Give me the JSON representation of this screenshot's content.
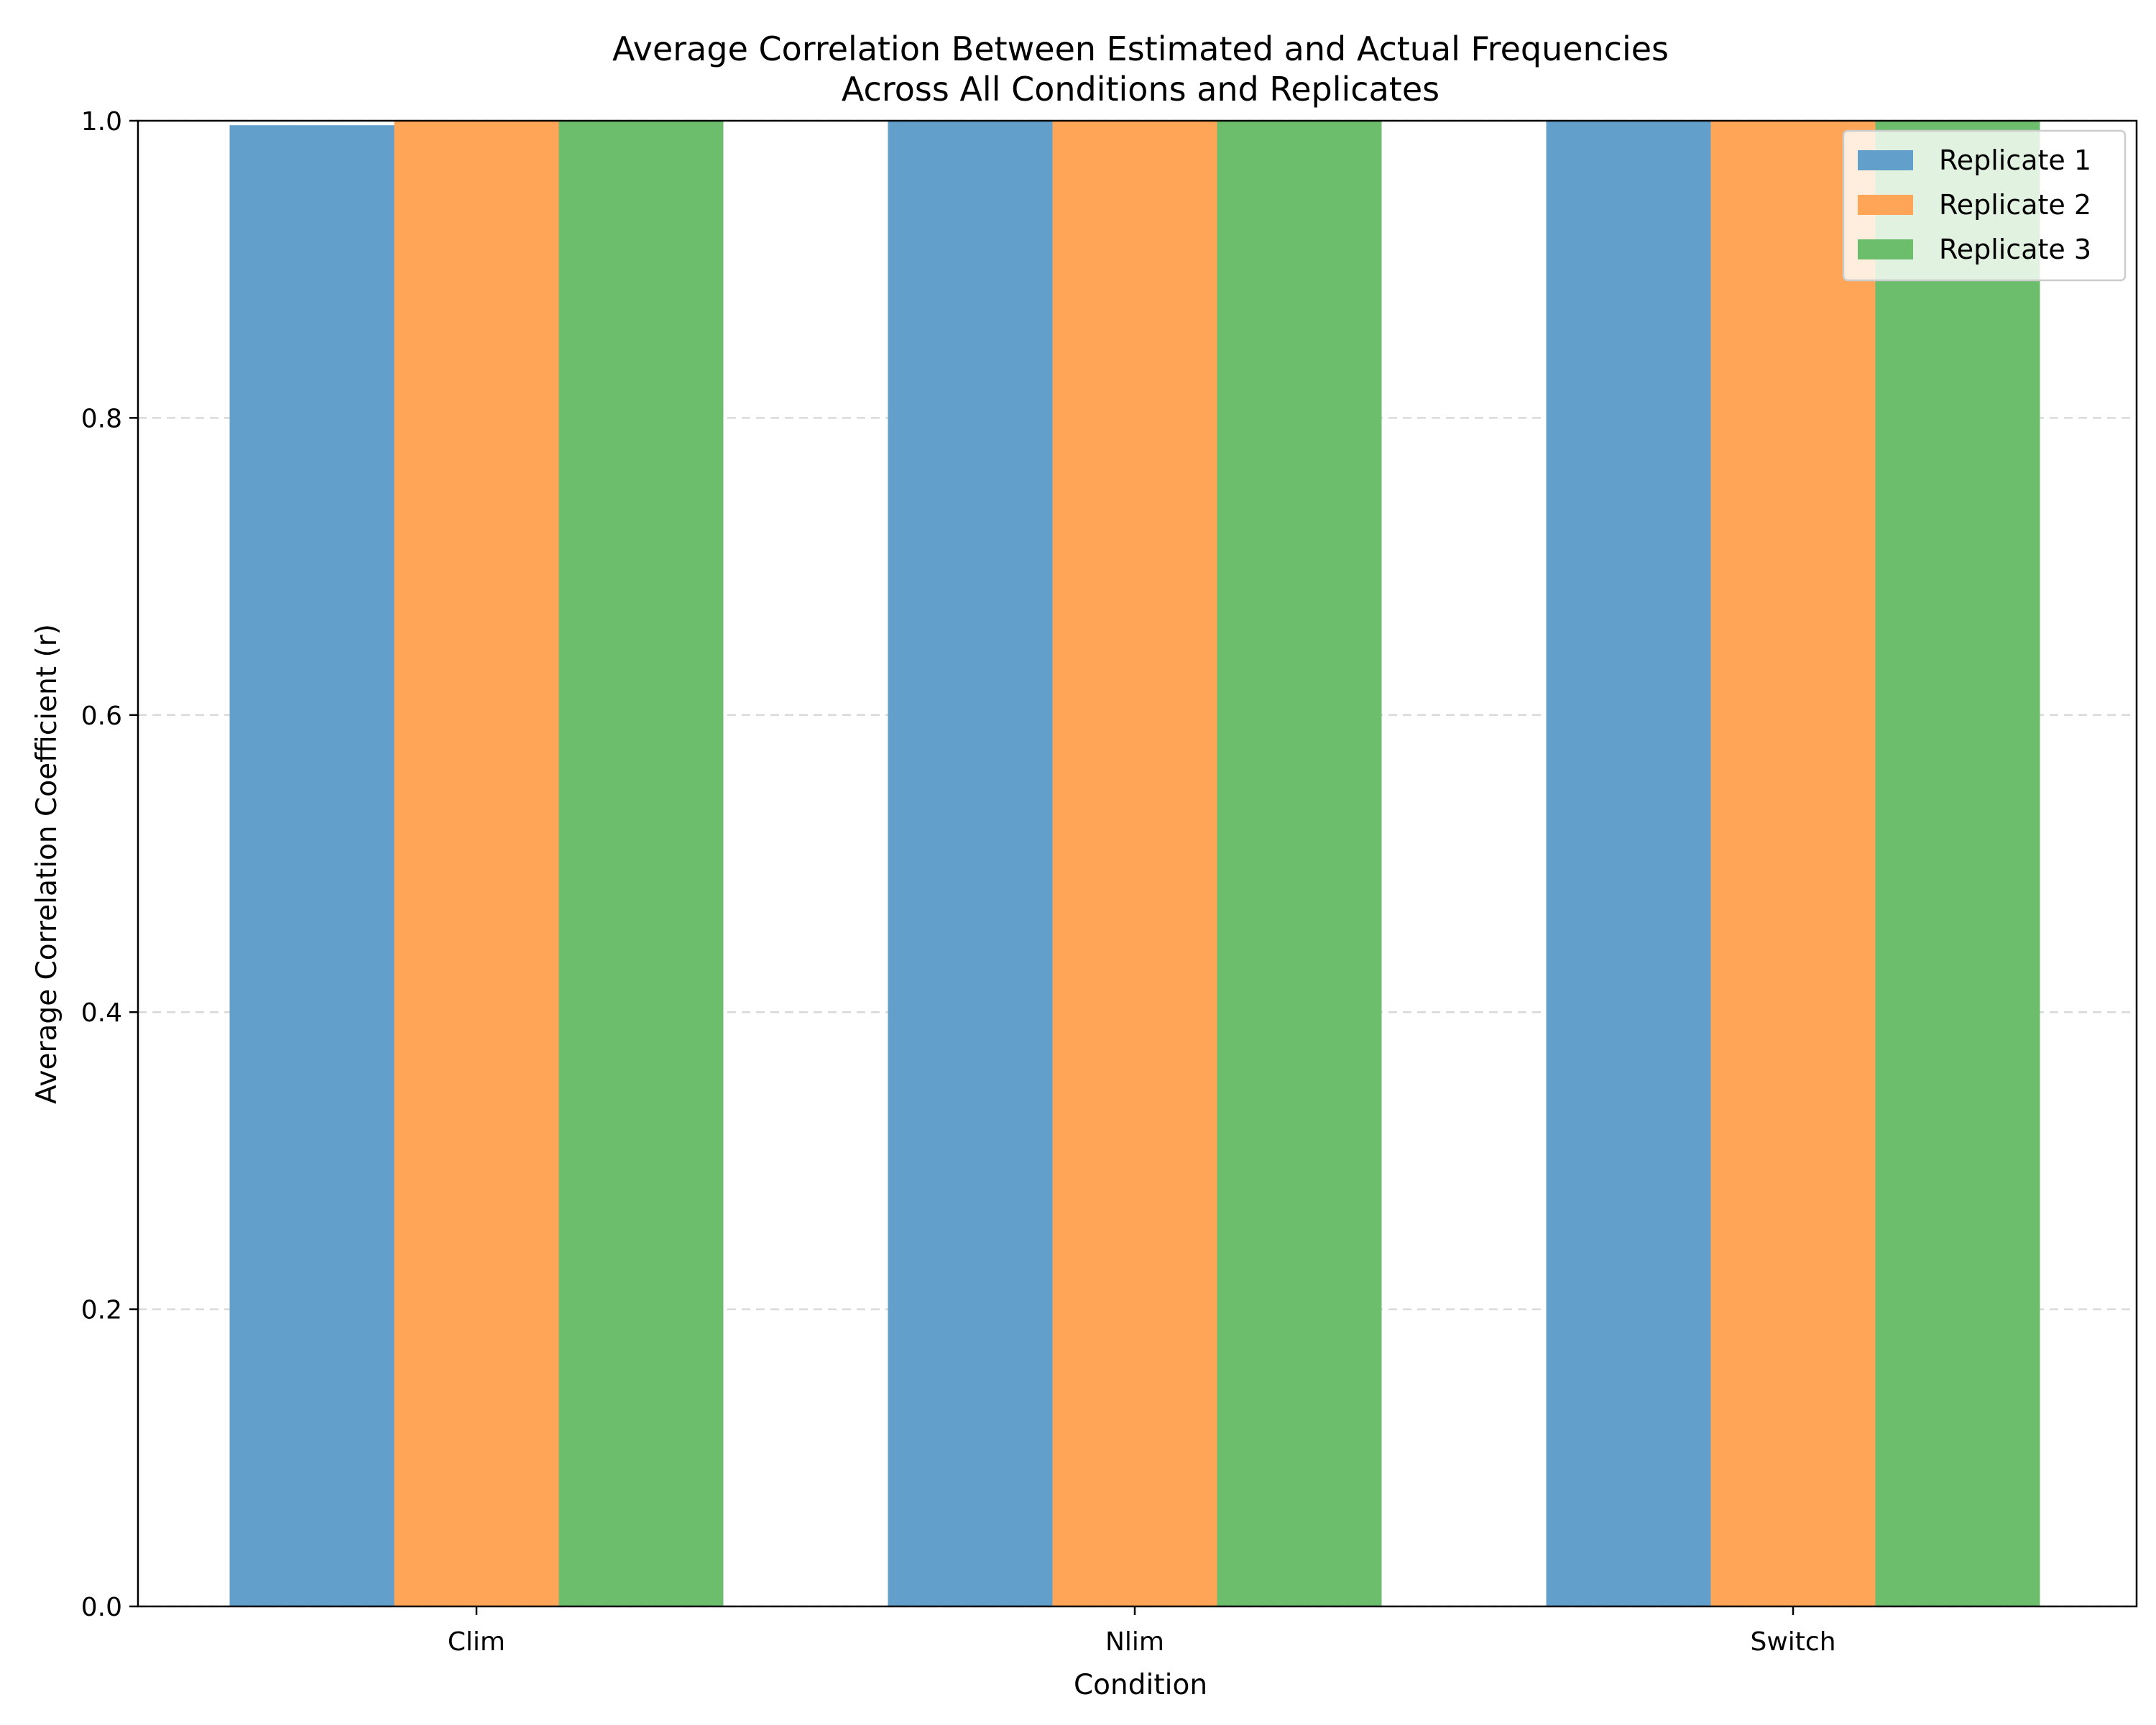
{
  "chart_data": {
    "type": "bar",
    "title": "Average Correlation Between Estimated and Actual Frequencies",
    "subtitle": "Across All Conditions and Replicates",
    "xlabel": "Condition",
    "ylabel": "Average Correlation Coefficient (r)",
    "categories": [
      "Clim",
      "Nlim",
      "Switch"
    ],
    "ylim": [
      0,
      1.0
    ],
    "yticks": [
      0.0,
      0.2,
      0.4,
      0.6,
      0.8,
      1.0
    ],
    "ytick_labels": [
      "0.0",
      "0.2",
      "0.4",
      "0.6",
      "0.8",
      "1.0"
    ],
    "grid": "y, dashed",
    "legend_position": "top-right",
    "series": [
      {
        "name": "Replicate 1",
        "color": "#639fcb",
        "values": [
          0.997,
          1.0,
          1.0
        ]
      },
      {
        "name": "Replicate 2",
        "color": "#ffa557",
        "values": [
          1.0,
          1.0,
          1.0
        ]
      },
      {
        "name": "Replicate 3",
        "color": "#6cbd6c",
        "values": [
          1.0,
          1.0,
          1.0
        ]
      }
    ]
  }
}
